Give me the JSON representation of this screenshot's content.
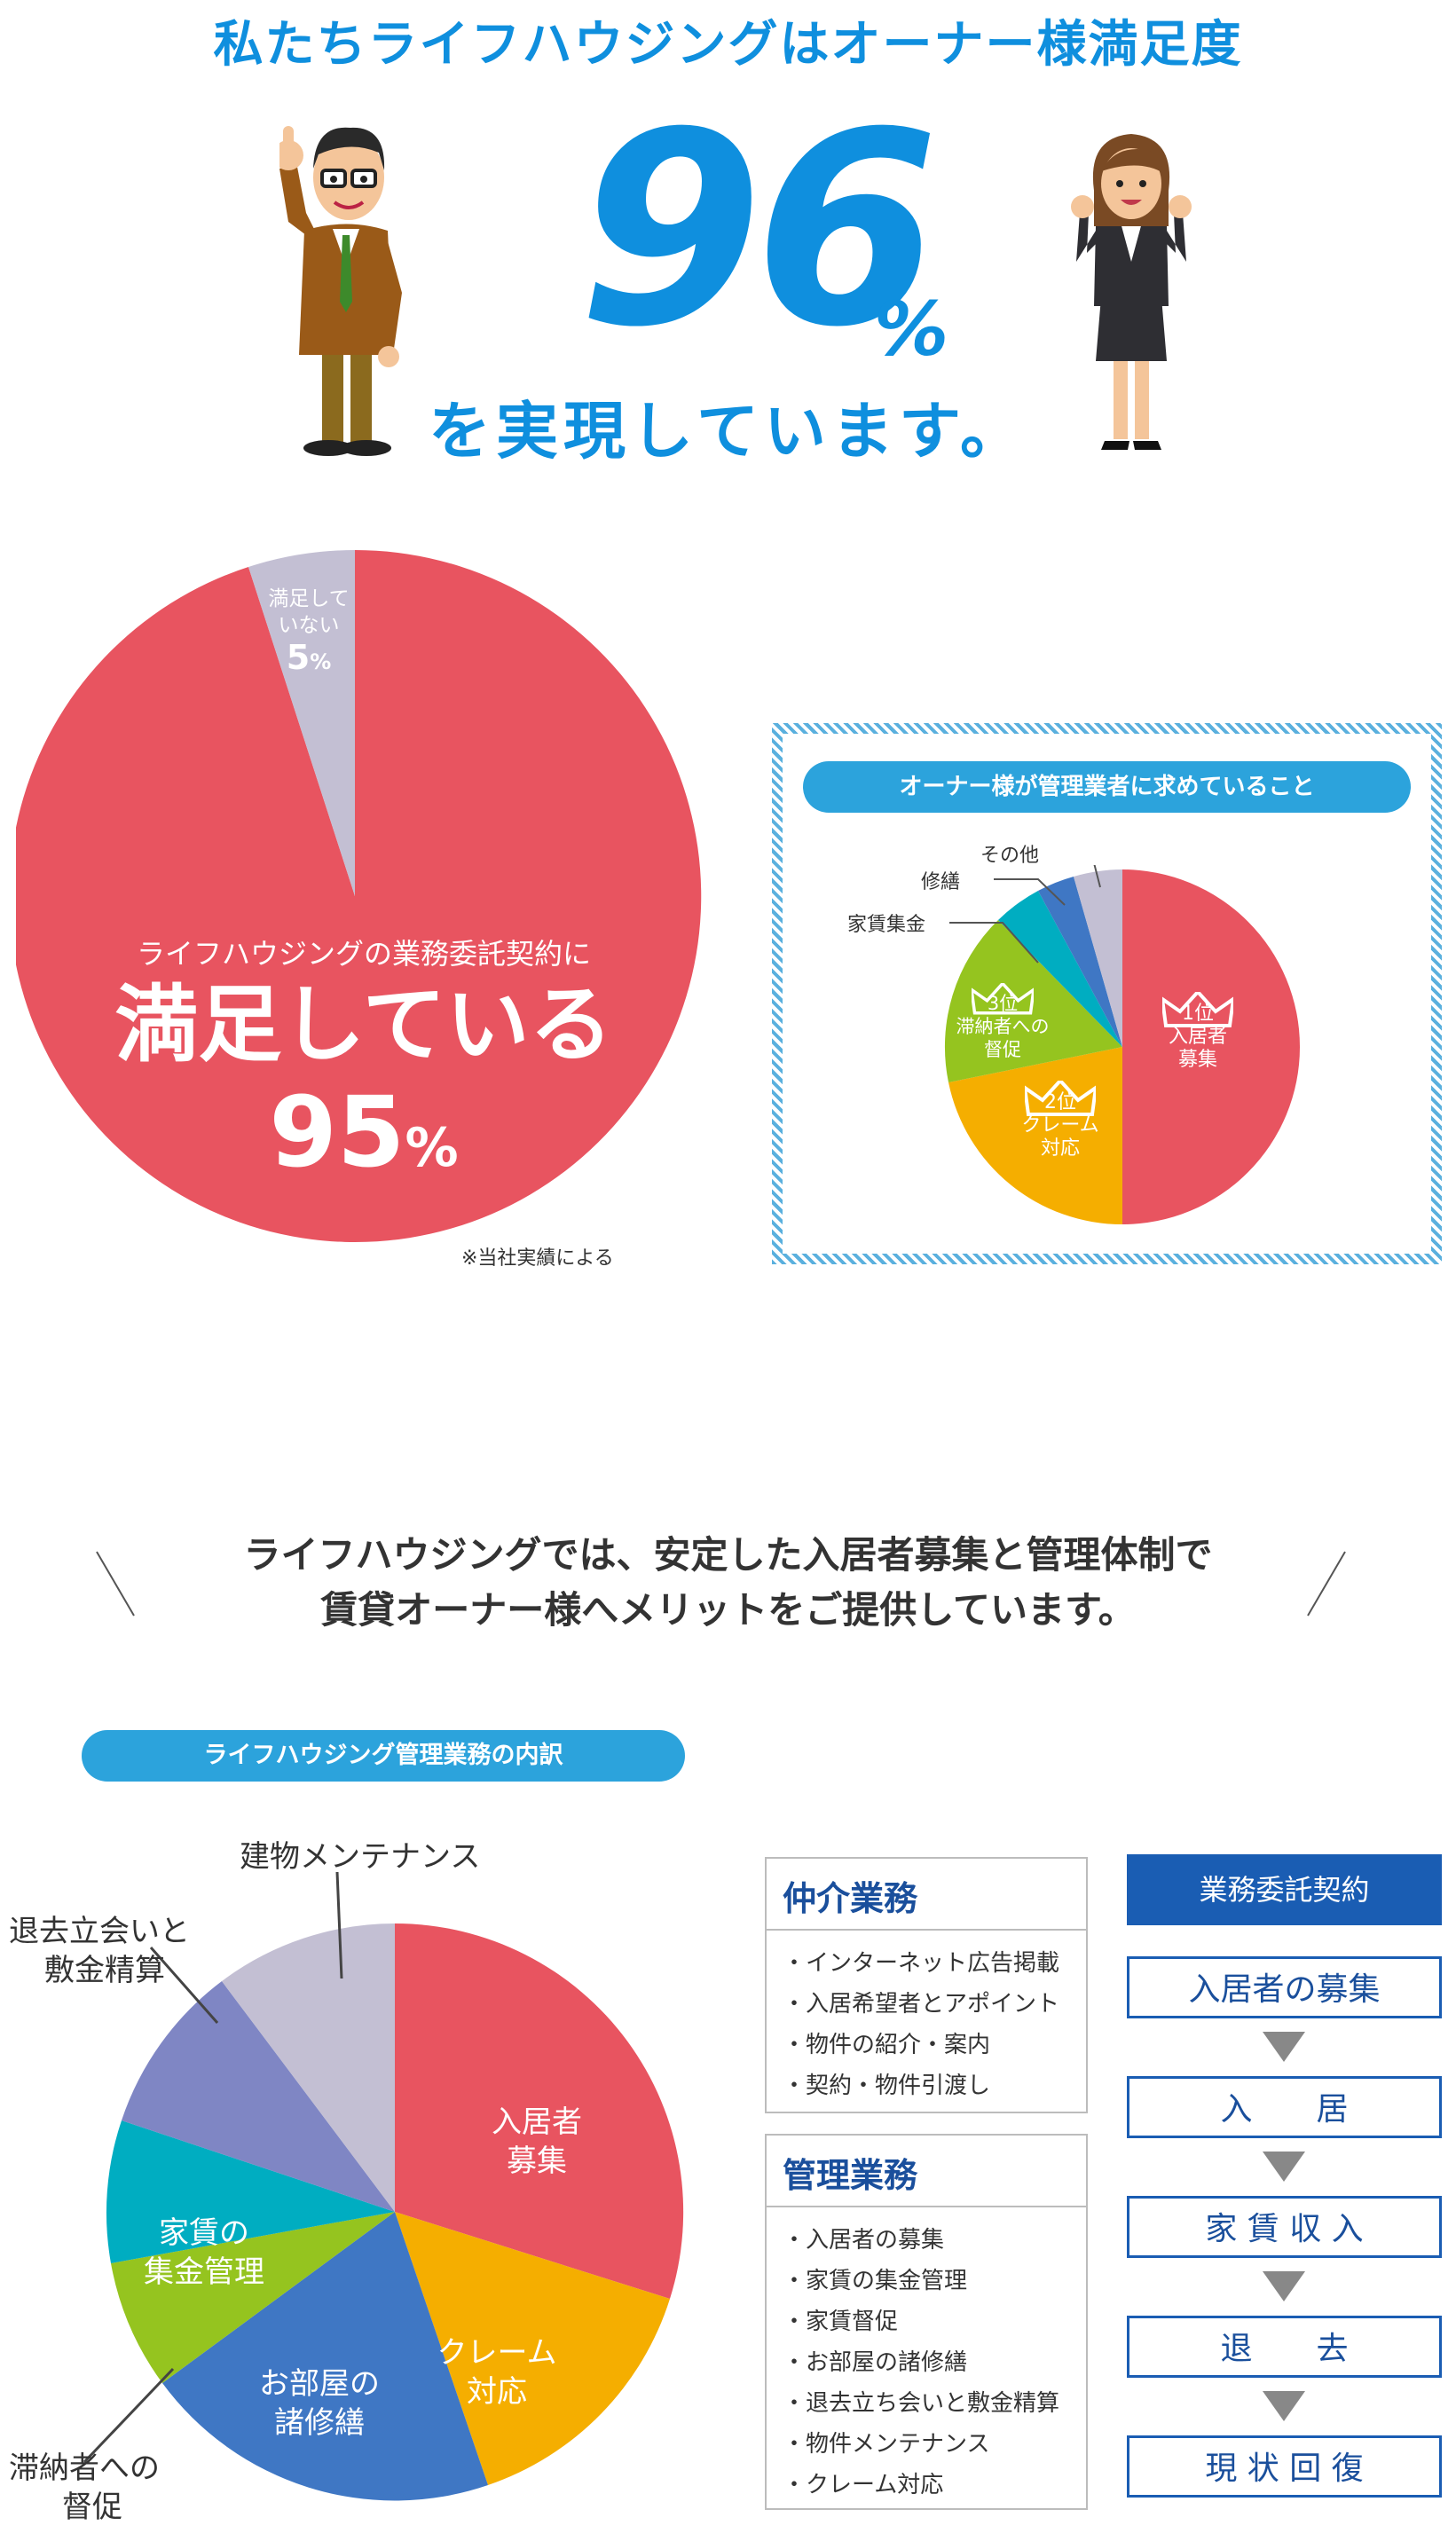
{
  "hero": {
    "headline": "私たちライフハウジングはオーナー様満足度",
    "big_number": "96",
    "percent_sign": "%",
    "subhead": "を実現しています。"
  },
  "satisfaction_pie": {
    "main_label_line1": "ライフハウジングの業務委託契約に",
    "main_label_line2": "満足している",
    "main_value": "95",
    "main_pct": "%",
    "minor_label_line1": "満足して",
    "minor_label_line2": "いない",
    "minor_value": "5",
    "minor_pct": "%",
    "footnote": "※当社実績による",
    "colors": {
      "satisfied": "#e85460",
      "unsatisfied": "#c3bfd3"
    }
  },
  "owner_wants": {
    "title": "オーナー様が管理業者に求めていること",
    "slices": [
      {
        "label": "入居者\n募集",
        "rank": "1位",
        "color": "#e85460"
      },
      {
        "label": "クレーム\n対応",
        "rank": "2位",
        "color": "#f5ae00"
      },
      {
        "label": "滞納者への\n督促",
        "rank": "3位",
        "color": "#95c41f"
      },
      {
        "label": "家賃集金",
        "color": "#00adc1"
      },
      {
        "label": "修繕",
        "color": "#3f77c4"
      },
      {
        "label": "その他",
        "color": "#c3bfd3"
      }
    ],
    "labels": {
      "rank1": "1位",
      "rank1_text_a": "入居者",
      "rank1_text_b": "募集",
      "rank2": "2位",
      "rank2_text_a": "クレーム",
      "rank2_text_b": "対応",
      "rank3": "3位",
      "rank3_text_a": "滞納者への",
      "rank3_text_b": "督促",
      "rent": "家賃集金",
      "repair": "修繕",
      "other": "その他"
    }
  },
  "message": {
    "line1": "ライフハウジングでは、安定した入居者募集と管理体制で",
    "line2": "賃貸オーナー様へメリットをご提供しています。"
  },
  "breakdown": {
    "title": "ライフハウジング管理業務の内訳",
    "labels": {
      "tenant_a": "入居者",
      "tenant_b": "募集",
      "claim_a": "クレーム",
      "claim_b": "対応",
      "repair_a": "お部屋の",
      "repair_b": "諸修繕",
      "delinquent_a": "滞納者への",
      "delinquent_b": "督促",
      "rent_a": "家賃の",
      "rent_b": "集金管理",
      "moveout_a": "退去立会いと",
      "moveout_b": "敷金精算",
      "building": "建物メンテナンス"
    }
  },
  "brokerage": {
    "title": "仲介業務",
    "items": [
      "インターネット広告掲載",
      "入居希望者とアポイント",
      "物件の紹介・案内",
      "契約・物件引渡し"
    ]
  },
  "management": {
    "title": "管理業務",
    "items": [
      "入居者の募集",
      "家賃の集金管理",
      "家賃督促",
      "お部屋の諸修繕",
      "退去立ち会いと敷金精算",
      "物件メンテナンス",
      "クレーム対応"
    ]
  },
  "flow": {
    "title": "業務委託契約",
    "steps": [
      "入居者の募集",
      "入　　居",
      "家 賃 収 入",
      "退　　去",
      "現 状 回 復"
    ]
  }
}
